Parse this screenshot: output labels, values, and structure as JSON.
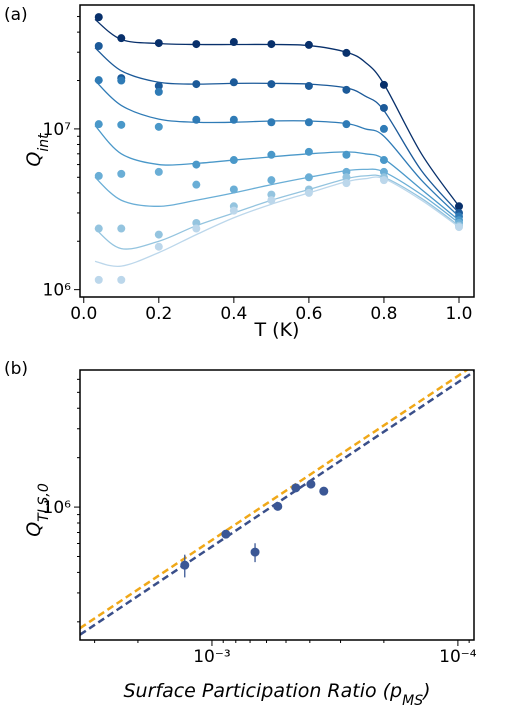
{
  "chart_data": [
    {
      "type": "line",
      "panel_label": "(a)",
      "xlabel": "T (K)",
      "ylabel": "Q",
      "ylabel_sub": "int",
      "xlim": [
        -0.01,
        1.04
      ],
      "ylim": [
        900000,
        59000000
      ],
      "ylog": true,
      "xticks": [
        {
          "value": 0,
          "label": "0.0"
        },
        {
          "value": 0.2,
          "label": "0.2"
        },
        {
          "value": 0.4,
          "label": "0.4"
        },
        {
          "value": 0.6,
          "label": "0.6"
        },
        {
          "value": 0.8,
          "label": "0.8"
        },
        {
          "value": 1,
          "label": "1.0"
        }
      ],
      "yticks": [
        {
          "value": 1000000,
          "label": "10⁶"
        },
        {
          "value": 10000000,
          "label": "10⁷"
        }
      ],
      "x": [
        0.04,
        0.1,
        0.2,
        0.3,
        0.4,
        0.5,
        0.6,
        0.7,
        0.8,
        1.0
      ],
      "fit_x": [
        0.03,
        0.1,
        0.2,
        0.3,
        0.4,
        0.5,
        0.6,
        0.7,
        0.75,
        0.8,
        0.9,
        1.0
      ],
      "series": [
        {
          "color": "#08306b",
          "values": [
            49600000,
            36700000,
            34200000,
            33700000,
            34700000,
            33700000,
            33300000,
            29700000,
            18800000,
            3300000
          ],
          "fit": [
            48000000,
            36000000,
            34000000,
            33500000,
            33500000,
            33500000,
            33000000,
            30000000,
            26000000,
            19000000,
            7000000,
            3300000
          ]
        },
        {
          "color": "#1c5a99",
          "values": [
            32800000,
            20700000,
            18500000,
            19000000,
            19500000,
            19000000,
            18500000,
            17500000,
            13500000,
            3000000
          ],
          "fit": [
            32000000,
            23000000,
            19500000,
            19000000,
            19200000,
            19200000,
            19000000,
            18000000,
            16000000,
            13000000,
            5500000,
            3000000
          ]
        },
        {
          "color": "#2f7bb6",
          "values": [
            20100000,
            20000000,
            17000000,
            11400000,
            11400000,
            11000000,
            11000000,
            10700000,
            10000000,
            2850000
          ],
          "fit": [
            20000000,
            14000000,
            11500000,
            11000000,
            11000000,
            11200000,
            11200000,
            10800000,
            10000000,
            9000000,
            4800000,
            2850000
          ]
        },
        {
          "color": "#4a98c9",
          "values": [
            10700000,
            10600000,
            10300000,
            6000000,
            6400000,
            6900000,
            7200000,
            6900000,
            6400000,
            2700000
          ],
          "fit": [
            10500000,
            7000000,
            6000000,
            6100000,
            6400000,
            6700000,
            7000000,
            7200000,
            7000000,
            6500000,
            4200000,
            2700000
          ]
        },
        {
          "color": "#6aaed6",
          "values": [
            5100000,
            5250000,
            5400000,
            4500000,
            4200000,
            4800000,
            5000000,
            5400000,
            5400000,
            2600000
          ],
          "fit": [
            5000000,
            3600000,
            3300000,
            3600000,
            4000000,
            4500000,
            5000000,
            5500000,
            5600000,
            5400000,
            3900000,
            2600000
          ]
        },
        {
          "color": "#94c4df",
          "values": [
            2400000,
            2400000,
            2200000,
            2600000,
            3300000,
            3900000,
            4200000,
            5000000,
            5000000,
            2500000
          ],
          "fit": [
            2400000,
            1800000,
            2000000,
            2500000,
            3000000,
            3600000,
            4200000,
            4900000,
            5100000,
            5000000,
            3700000,
            2500000
          ]
        },
        {
          "color": "#bcd7eb",
          "values": [
            1150000,
            1150000,
            1850000,
            2400000,
            3100000,
            3600000,
            4000000,
            4600000,
            4800000,
            2450000
          ],
          "fit": [
            1500000,
            1400000,
            1700000,
            2200000,
            2800000,
            3400000,
            4000000,
            4700000,
            4900000,
            4900000,
            3600000,
            2450000
          ]
        }
      ]
    },
    {
      "type": "scatter",
      "panel_label": "(b)",
      "xlabel": "Surface Participation Ratio (p",
      "xlabel_sub": "MS",
      "xlabel_end": ")",
      "ylabel": "Q",
      "ylabel_sub": "TLS,0",
      "xlim": [
        0.00344,
        8.6e-05
      ],
      "ylim": [
        155000,
        6840000
      ],
      "xlog": true,
      "ylog": true,
      "xticks": [
        {
          "value": 0.001,
          "label": "10⁻³"
        },
        {
          "value": 0.0001,
          "label": "10⁻⁴"
        }
      ],
      "yticks": [
        {
          "value": 1000000,
          "label": "10⁶"
        }
      ],
      "color": "#3b5795",
      "x": [
        0.00129,
        0.000878,
        0.000668,
        0.00054,
        0.000456,
        0.000396,
        0.000351
      ],
      "values": [
        443000,
        684000,
        532000,
        1010000,
        1310000,
        1380000,
        1250000
      ],
      "errors": [
        70000,
        40000,
        70000,
        30000,
        30000,
        30000,
        30000
      ],
      "lines": [
        {
          "color": "#f0a818",
          "x": [
            0.00344,
            8.6e-05
          ],
          "values": [
            183000,
            7310000
          ]
        },
        {
          "color": "#3a4f8a",
          "x": [
            0.00344,
            8.6e-05
          ],
          "values": [
            167000,
            6690000
          ]
        }
      ]
    }
  ]
}
